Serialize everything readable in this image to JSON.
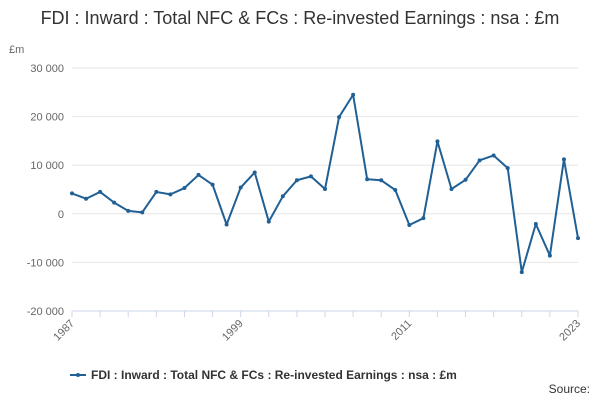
{
  "chart_data": {
    "type": "line",
    "title": "FDI : Inward : Total NFC & FCs : Re-invested Earnings : nsa : £m",
    "ylabel": "£m",
    "xlabel": "",
    "ylim": [
      -20000,
      30000
    ],
    "xlim": [
      1987,
      2023
    ],
    "y_ticks": [
      30000,
      20000,
      10000,
      0,
      -10000,
      -20000
    ],
    "y_tick_labels": [
      "30 000",
      "20 000",
      "10 000",
      "0",
      "-10 000",
      "-20 000"
    ],
    "x_ticks": [
      1987,
      1999,
      2011,
      2023
    ],
    "x_tick_labels": [
      "1987",
      "1999",
      "2011",
      "2023"
    ],
    "grid": "horizontal",
    "legend_position": "bottom",
    "series": [
      {
        "name": "FDI : Inward : Total NFC & FCs : Re-invested Earnings : nsa : £m",
        "color": "#206095",
        "x": [
          1987,
          1988,
          1989,
          1990,
          1991,
          1992,
          1993,
          1994,
          1995,
          1996,
          1997,
          1998,
          1999,
          2000,
          2001,
          2002,
          2003,
          2004,
          2005,
          2006,
          2007,
          2008,
          2009,
          2010,
          2011,
          2012,
          2013,
          2014,
          2015,
          2016,
          2017,
          2018,
          2019,
          2020,
          2021,
          2022,
          2023
        ],
        "values": [
          4200,
          3100,
          4500,
          2300,
          600,
          300,
          4500,
          4000,
          5300,
          8000,
          6000,
          -2200,
          5400,
          8500,
          -1600,
          3600,
          6900,
          7700,
          5100,
          19900,
          24500,
          7100,
          6900,
          4900,
          -2300,
          -900,
          14900,
          5100,
          7000,
          11000,
          12000,
          9400,
          -12000,
          -2100,
          -8600,
          11200,
          -5000
        ]
      }
    ]
  },
  "credits": "Source:"
}
